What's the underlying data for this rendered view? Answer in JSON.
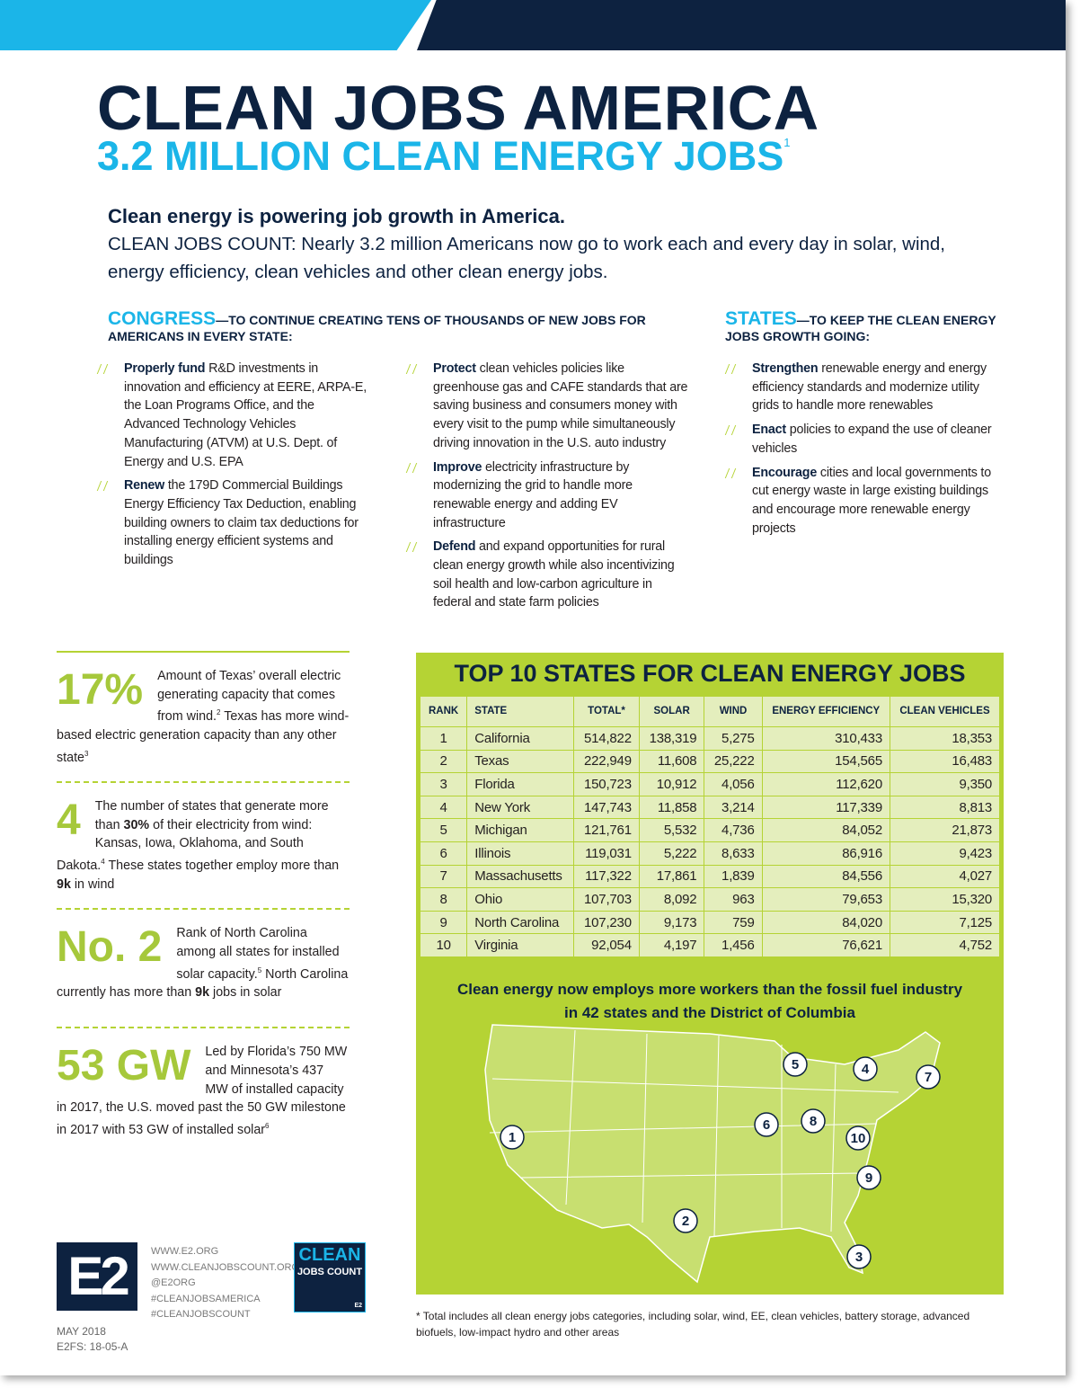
{
  "header": {
    "title": "CLEAN JOBS AMERICA",
    "subtitle": "3.2 MILLION CLEAN ENERGY JOBS",
    "subtitle_note": "1"
  },
  "intro": {
    "lead": "Clean energy is powering job growth in America.",
    "body": "CLEAN JOBS COUNT: Nearly 3.2 million Americans now go to work each and every day in solar, wind, energy efficiency, clean vehicles and other clean energy jobs."
  },
  "congress": {
    "heading": "CONGRESS",
    "subheading": "—TO CONTINUE CREATING TENS OF THOUSANDS OF NEW JOBS FOR AMERICANS IN EVERY STATE:",
    "columns": [
      [
        {
          "bold": "Properly fund",
          "text": " R&D investments in innovation and efficiency at EERE, ARPA-E, the Loan Programs Office, and the Advanced Technology Vehicles Manufacturing (ATVM) at U.S. Dept. of Energy and U.S. EPA"
        },
        {
          "bold": "Renew",
          "text": " the 179D Commercial Buildings Energy Efficiency Tax Deduction, enabling building owners to claim tax deductions for installing energy efficient systems and buildings"
        }
      ],
      [
        {
          "bold": "Protect",
          "text": " clean vehicles policies like greenhouse gas and CAFE standards that are saving business and consumers money with every visit to the pump while simultaneously driving innovation in the U.S. auto industry"
        },
        {
          "bold": "Improve",
          "text": " electricity infrastructure by modernizing the grid to handle more renewable energy and adding EV infrastructure"
        },
        {
          "bold": "Defend",
          "text": " and expand opportunities for rural clean energy growth while also incentivizing soil health and low-carbon agriculture in federal and state farm policies"
        }
      ]
    ]
  },
  "states": {
    "heading": "STATES",
    "subheading": "—TO KEEP THE CLEAN ENERGY JOBS GROWTH GOING:",
    "items": [
      {
        "bold": "Strengthen",
        "text": " renewable energy and energy efficiency standards and modernize utility grids to handle more renewables"
      },
      {
        "bold": "Enact",
        "text": " policies to expand the use of cleaner vehicles"
      },
      {
        "bold": "Encourage",
        "text": " cities and local governments to cut energy waste in large existing buildings and encourage more renewable energy projects"
      }
    ]
  },
  "stats": [
    {
      "figure": "17%",
      "segments": [
        {
          "text": "Amount of Texas’ overall electric generating capacity that comes from wind.",
          "style": "normal"
        },
        {
          "text": "2",
          "style": "sup"
        },
        {
          "text": " Texas has more wind-based electric generation capacity than any other state",
          "style": "normal"
        },
        {
          "text": "3",
          "style": "sup"
        }
      ]
    },
    {
      "figure": "4",
      "segments": [
        {
          "text": "The number of states that generate more than ",
          "style": "normal"
        },
        {
          "text": "30%",
          "style": "bold"
        },
        {
          "text": " of their electricity from wind: Kansas, Iowa, Oklahoma, and South Dakota.",
          "style": "normal"
        },
        {
          "text": "4",
          "style": "sup"
        },
        {
          "text": " These states together employ more than ",
          "style": "normal"
        },
        {
          "text": "9k",
          "style": "bold"
        },
        {
          "text": " in wind",
          "style": "normal"
        }
      ]
    },
    {
      "figure": "No. 2",
      "segments": [
        {
          "text": "Rank of North Carolina among all states for installed solar capacity.",
          "style": "normal"
        },
        {
          "text": "5",
          "style": "sup"
        },
        {
          "text": " North Carolina currently has more than ",
          "style": "normal"
        },
        {
          "text": "9k",
          "style": "bold"
        },
        {
          "text": " jobs in solar",
          "style": "normal"
        }
      ]
    },
    {
      "figure": "53 GW",
      "segments": [
        {
          "text": "Led by Florida’s 750 MW and Minnesota’s 437 MW of installed capacity in 2017, the U.S. moved past the 50 GW milestone in 2017 with 53 GW of installed solar",
          "style": "normal"
        },
        {
          "text": "6",
          "style": "sup"
        }
      ]
    }
  ],
  "table": {
    "title": "TOP 10 STATES FOR CLEAN ENERGY JOBS",
    "columns": [
      "RANK",
      "STATE",
      "TOTAL*",
      "SOLAR",
      "WIND",
      "ENERGY EFFICIENCY",
      "CLEAN VEHICLES"
    ],
    "rows": [
      [
        "1",
        "California",
        "514,822",
        "138,319",
        "5,275",
        "310,433",
        "18,353"
      ],
      [
        "2",
        "Texas",
        "222,949",
        "11,608",
        "25,222",
        "154,565",
        "16,483"
      ],
      [
        "3",
        "Florida",
        "150,723",
        "10,912",
        "4,056",
        "112,620",
        "9,350"
      ],
      [
        "4",
        "New York",
        "147,743",
        "11,858",
        "3,214",
        "117,339",
        "8,813"
      ],
      [
        "5",
        "Michigan",
        "121,761",
        "5,532",
        "4,736",
        "84,052",
        "21,873"
      ],
      [
        "6",
        "Illinois",
        "119,031",
        "5,222",
        "8,633",
        "86,916",
        "9,423"
      ],
      [
        "7",
        "Massachusetts",
        "117,322",
        "17,861",
        "1,839",
        "84,556",
        "4,027"
      ],
      [
        "8",
        "Ohio",
        "107,703",
        "8,092",
        "963",
        "79,653",
        "15,320"
      ],
      [
        "9",
        "North Carolina",
        "107,230",
        "9,173",
        "759",
        "84,020",
        "7,125"
      ],
      [
        "10",
        "Virginia",
        "92,054",
        "4,197",
        "1,456",
        "76,621",
        "4,752"
      ]
    ],
    "footnote": "* Total includes all clean energy jobs categories, including solar, wind, EE, clean vehicles, battery storage, advanced biofuels, low-impact hydro and other areas"
  },
  "map": {
    "caption": "Clean energy now employs more workers than the fossil fuel industry in 42 states and the District of Columbia",
    "markers": [
      "1",
      "2",
      "3",
      "4",
      "5",
      "6",
      "7",
      "8",
      "9",
      "10"
    ]
  },
  "footer": {
    "logo": "E2",
    "links": [
      "WWW.E2.ORG",
      "WWW.CLEANJOBSCOUNT.ORG",
      "@E2ORG",
      "#CLEANJOBSAMERICA",
      "#CLEANJOBSCOUNT"
    ],
    "badge_title": "CLEAN",
    "badge_subtitle": "JOBS COUNT",
    "badge_mark": "E2",
    "date": "MAY 2018",
    "code": "E2FS: 18-05-A"
  }
}
